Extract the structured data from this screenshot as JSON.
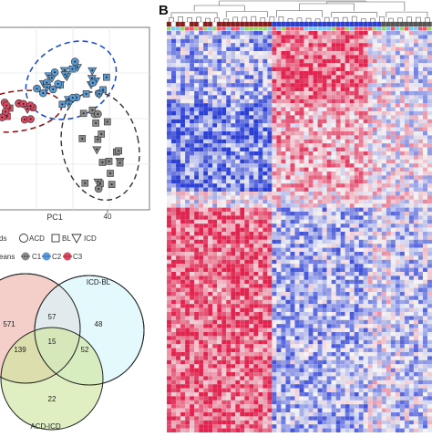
{
  "panel_b_label": "B",
  "pca": {
    "x_axis_label": "PC1",
    "x_tick": "40",
    "legend_row1_label": "ds",
    "legend_row1_items": [
      "ACD",
      "BL",
      "ICD"
    ],
    "legend_row2_label": "eans",
    "legend_row2_items": [
      "C1",
      "C2",
      "C3"
    ],
    "colors": {
      "C1": "#5b9bd5",
      "C2": "#8a8a8a",
      "C3": "#d94a63",
      "dash_blue": "#1f4fd1",
      "dash_red": "#8b1a1a",
      "dash_gray": "#333333"
    }
  },
  "venn": {
    "label_icd_bl": "ICD-BL",
    "label_acd_icd": "ACD-ICD",
    "values": {
      "only_left": "571",
      "left_right": "57",
      "only_right": "48",
      "left_bottom": "139",
      "center": "15",
      "right_bottom": "52",
      "only_bottom": "22"
    },
    "colors": {
      "left": "#f3c9c3",
      "right": "#d8f6fb",
      "bottom": "#cfe6a0",
      "left_bottom": "#e3c98f"
    }
  },
  "heatmap": {
    "colors": {
      "low": "#2b3fd6",
      "mid": "#f4f4f4",
      "high": "#e0244f"
    }
  }
}
